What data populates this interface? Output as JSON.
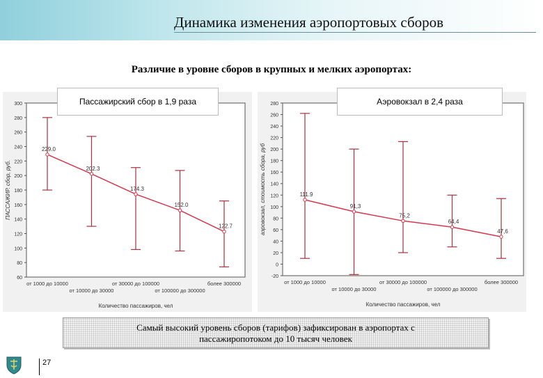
{
  "header": {
    "title": "Динамика изменения аэропортовых сборов"
  },
  "subtitle": "Различие в уровне сборов в крупных и мелких аэропортах:",
  "note": {
    "line1": "Самый высокий уровень сборов (тарифов) зафиксирован в аэропортах с",
    "line2": "пассажиропотоком до 10 тысяч человек"
  },
  "page_number": "27",
  "colors": {
    "mean_line": "#d6384e",
    "error_bar": "#a8323f",
    "header_gradient_start": "#8fd0dc"
  },
  "chart_data": [
    {
      "type": "line",
      "caption": "Пассажирский сбор в 1,9 раза",
      "ylabel": "ПАССАЖИР. сбор, руб.",
      "xlabel": "Количество пассажиров, чел",
      "ylim": [
        60,
        300
      ],
      "yticks": [
        "300",
        "280",
        "260",
        "240",
        "220",
        "200",
        "180",
        "160",
        "140",
        "120",
        "100",
        "80",
        "60"
      ],
      "categories": [
        "от 1000 до 10000",
        "от 10000 до 30000",
        "от 30000 до 100000",
        "от 100000 до 300000",
        "более 300000"
      ],
      "series": [
        {
          "values": [
            229.0,
            202.3,
            174.3,
            152.0,
            122.7
          ],
          "labels": [
            "229.0",
            "202.3",
            "174.3",
            "152.0",
            "122.7"
          ],
          "lower": [
            180,
            130,
            98,
            96,
            74
          ],
          "upper": [
            280,
            254,
            211,
            207,
            165
          ]
        }
      ]
    },
    {
      "type": "line",
      "caption": "Аэровокзал в 2,4 раза",
      "ylabel": "аэровокзал, стоимость сбора, руб",
      "xlabel": "Количество пассажиров, чел",
      "ylim": [
        -20,
        280
      ],
      "yticks": [
        "280",
        "260",
        "240",
        "220",
        "200",
        "180",
        "160",
        "140",
        "120",
        "100",
        "80",
        "60",
        "40",
        "20",
        "0",
        "-20"
      ],
      "categories": [
        "от 1000 до 10000",
        "от 10000 до 30000",
        "от 30000 до 100000",
        "от 100000 до 300000",
        "более 300000"
      ],
      "series": [
        {
          "values": [
            111.9,
            91.3,
            75.2,
            64.4,
            47.6
          ],
          "labels": [
            "111.9",
            "91,3",
            "75,2",
            "64,4",
            "47,6"
          ],
          "lower": [
            10,
            -18,
            20,
            30,
            10
          ],
          "upper": [
            262,
            200,
            213,
            120,
            114
          ]
        }
      ]
    }
  ]
}
